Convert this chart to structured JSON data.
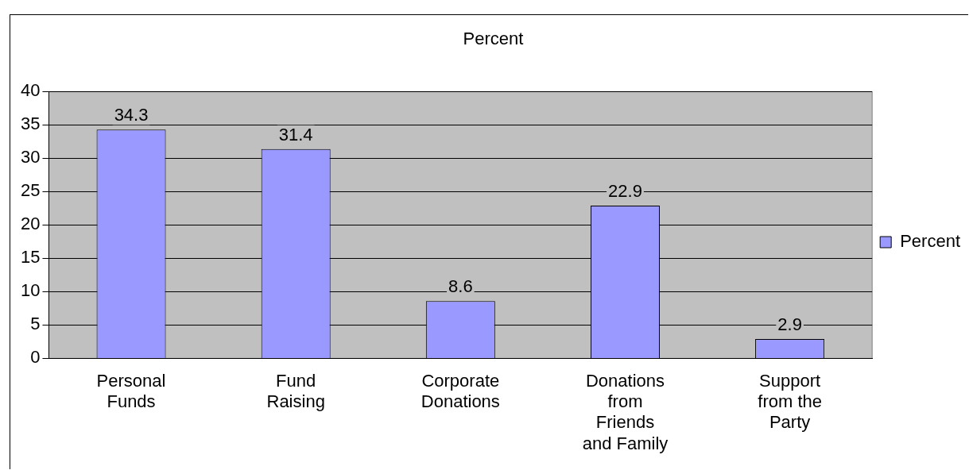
{
  "chart_data": {
    "type": "bar",
    "title": "Percent",
    "categories": [
      "Personal Funds",
      "Fund Raising",
      "Corporate Donations",
      "Donations from Friends and Family",
      "Support from the Party"
    ],
    "series": [
      {
        "name": "Percent",
        "color": "#9999ff",
        "values": [
          34.3,
          31.4,
          8.6,
          22.9,
          2.9
        ]
      }
    ],
    "ylim": [
      0,
      40
    ],
    "yticks": [
      0,
      5,
      10,
      15,
      20,
      25,
      30,
      35,
      40
    ],
    "grid": "y",
    "legend": "right",
    "data_labels": true
  }
}
